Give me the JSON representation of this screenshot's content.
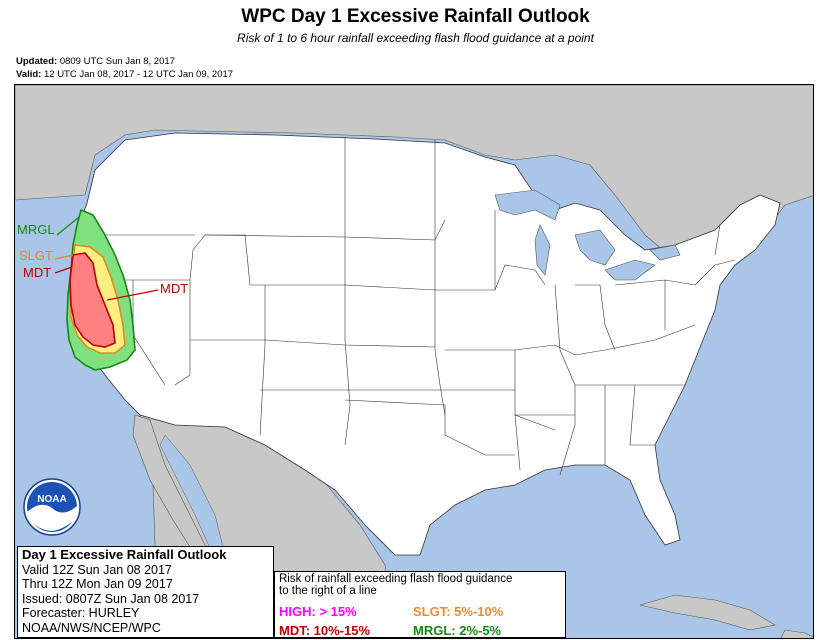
{
  "header": {
    "title": "WPC Day 1 Excessive Rainfall Outlook",
    "subtitle": "Risk of 1 to 6 hour rainfall exceeding flash flood guidance at a point",
    "updated_label": "Updated:",
    "updated_value": "0809 UTC Sun Jan 8, 2017",
    "valid_label": "Valid:",
    "valid_value": "12 UTC Jan 08, 2017 - 12 UTC Jan 09, 2017"
  },
  "map": {
    "labels": {
      "mrgl": "MRGL",
      "slgt": "SLGT",
      "mdt_left": "MDT",
      "mdt_right": "MDT"
    },
    "logo_text": "NOAA",
    "colors": {
      "ocean": "#a9c6e8",
      "land_us": "#ffffff",
      "land_other": "#c8c8c8",
      "mrgl": "#80e080",
      "slgt": "#ffef80",
      "mdt": "#ff8080",
      "high": "#ff00ff"
    }
  },
  "infobox": {
    "title": "Day 1 Excessive Rainfall Outlook",
    "valid": "Valid 12Z Sun Jan 08 2017",
    "thru": "Thru 12Z Mon Jan 09 2017",
    "issued": "Issued: 0807Z Sun Jan 08 2017",
    "forecaster": "Forecaster: HURLEY",
    "agency": "NOAA/NWS/NCEP/WPC"
  },
  "legend": {
    "heading_line1": "Risk of rainfall exceeding flash flood guidance",
    "heading_line2": "to the right of a line",
    "high": "HIGH: > 15%",
    "slgt": "SLGT: 5%-10%",
    "mdt": "MDT: 10%-15%",
    "mrgl": "MRGL: 2%-5%"
  }
}
